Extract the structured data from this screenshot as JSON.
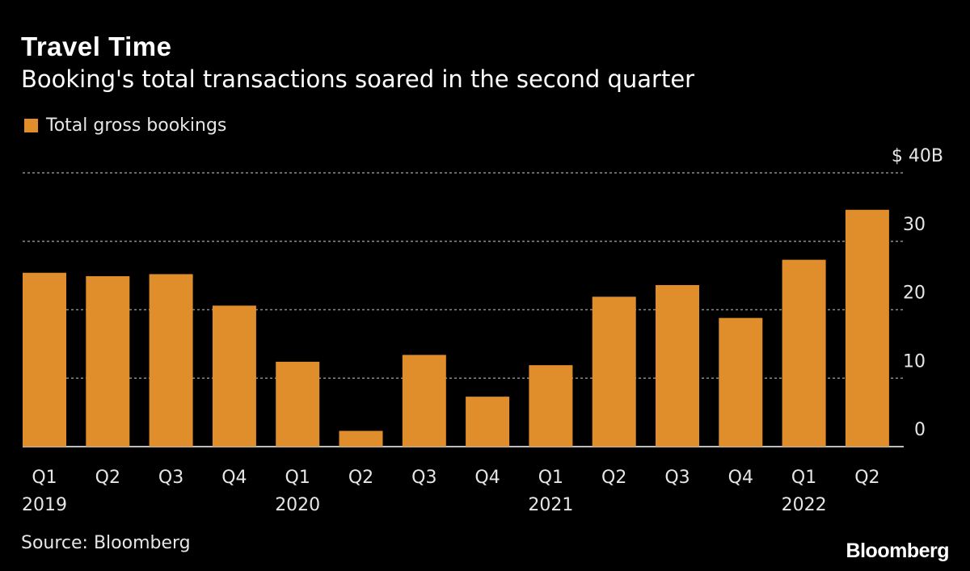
{
  "header": {
    "title": "Travel Time",
    "subtitle": "Booking's total transactions soared in the second quarter"
  },
  "footer": {
    "source": "Source: Bloomberg",
    "brand": "Bloomberg"
  },
  "colors": {
    "background": "#000000",
    "bar": "#E08E2B",
    "grid": "#8c8c8c",
    "text": "#e6e6e6"
  },
  "chart_data": {
    "type": "bar",
    "title": "Travel Time",
    "subtitle": "Booking's total transactions soared in the second quarter",
    "categories": [
      "Q1 2019",
      "Q2 2019",
      "Q3 2019",
      "Q4 2019",
      "Q1 2020",
      "Q2 2020",
      "Q3 2020",
      "Q4 2020",
      "Q1 2021",
      "Q2 2021",
      "Q3 2021",
      "Q4 2021",
      "Q1 2022",
      "Q2 2022"
    ],
    "x_tick_labels": [
      "Q1",
      "Q2",
      "Q3",
      "Q4",
      "Q1",
      "Q2",
      "Q3",
      "Q4",
      "Q1",
      "Q2",
      "Q3",
      "Q4",
      "Q1",
      "Q2"
    ],
    "x_year_labels": [
      "2019",
      "",
      "",
      "",
      "2020",
      "",
      "",
      "",
      "2021",
      "",
      "",
      "",
      "2022",
      ""
    ],
    "series": [
      {
        "name": "Total gross bookings",
        "values": [
          25.4,
          24.9,
          25.2,
          20.6,
          12.4,
          2.3,
          13.4,
          7.3,
          11.9,
          21.9,
          23.6,
          18.8,
          27.3,
          34.6
        ]
      }
    ],
    "ylim": [
      0,
      40
    ],
    "yticks": [
      0,
      10,
      20,
      30,
      40
    ],
    "ytick_labels": [
      "0",
      "10",
      "20",
      "30",
      "$ 40B"
    ],
    "y_axis_position": "right",
    "grid": true,
    "legend": "top-left"
  }
}
